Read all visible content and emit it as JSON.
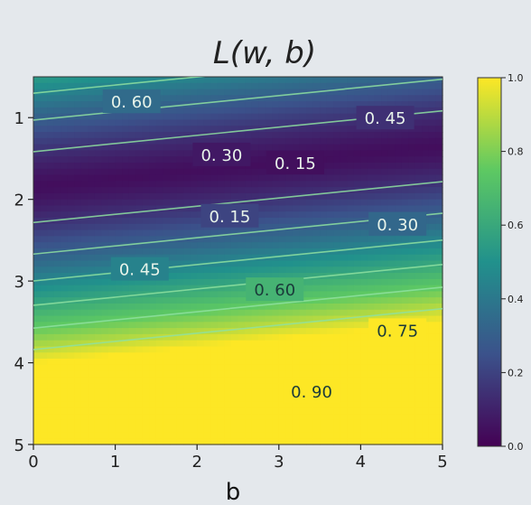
{
  "chart_data": {
    "type": "heatmap",
    "title": "L(w, b)",
    "xlabel": "b",
    "ylabel": "",
    "xlim": [
      0,
      5
    ],
    "ylim": [
      5,
      0.5
    ],
    "y_axis_inverted": true,
    "x_ticks": [
      "0",
      "1",
      "2",
      "3",
      "4",
      "5"
    ],
    "y_ticks": [
      "1",
      "2",
      "3",
      "4",
      "5"
    ],
    "grid": false,
    "colormap": "viridis",
    "colorbar": {
      "position": "right",
      "range": [
        0.0,
        1.0
      ],
      "ticks": [
        "0.0",
        "0.2",
        "0.4",
        "0.6",
        "0.8",
        "1.0"
      ]
    },
    "contour_levels": [
      0.15,
      0.3,
      0.45,
      0.6,
      0.75,
      0.9
    ],
    "contour_labels": [
      {
        "text": "0. 60",
        "b": 1.2,
        "w": 0.8
      },
      {
        "text": "0. 45",
        "b": 4.3,
        "w": 1.0
      },
      {
        "text": "0. 30",
        "b": 2.3,
        "w": 1.45
      },
      {
        "text": "0. 15",
        "b": 3.2,
        "w": 1.55
      },
      {
        "text": "0. 15",
        "b": 2.4,
        "w": 2.2
      },
      {
        "text": "0. 30",
        "b": 4.45,
        "w": 2.3
      },
      {
        "text": "0. 45",
        "b": 1.3,
        "w": 2.85
      },
      {
        "text": "0. 60",
        "b": 2.95,
        "w": 3.1
      },
      {
        "text": "0. 75",
        "b": 4.45,
        "w": 3.6
      },
      {
        "text": "0. 90",
        "b": 3.4,
        "w": 4.35
      }
    ]
  },
  "colors": {
    "viridis_stops": [
      "#440154",
      "#3b528b",
      "#21918c",
      "#5ec962",
      "#fde725"
    ],
    "contour_line": "#8ee0a0"
  }
}
